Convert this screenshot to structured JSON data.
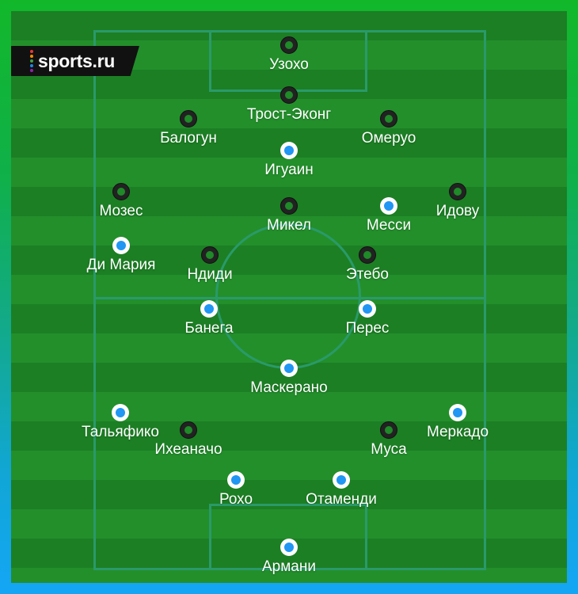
{
  "brand": {
    "logo_text": "sports.ru",
    "logo_dot_colors": [
      "#e53935",
      "#fb8c00",
      "#43a047",
      "#1e88e5",
      "#8e24aa"
    ]
  },
  "colors": {
    "nigeria": "#222222",
    "argentina": "#2196f3",
    "pitch_dark": "#1c7f24",
    "pitch_light": "#238f2b",
    "lines": "#2a9a6a"
  },
  "players": [
    {
      "name": "Узохо",
      "team": "nigeria"
    },
    {
      "name": "Трост-Эконг",
      "team": "nigeria"
    },
    {
      "name": "Балогун",
      "team": "nigeria"
    },
    {
      "name": "Омеруо",
      "team": "nigeria"
    },
    {
      "name": "Игуаин",
      "team": "argentina"
    },
    {
      "name": "Мозес",
      "team": "nigeria"
    },
    {
      "name": "Микел",
      "team": "nigeria"
    },
    {
      "name": "Месси",
      "team": "argentina"
    },
    {
      "name": "Идову",
      "team": "nigeria"
    },
    {
      "name": "Ди Мария",
      "team": "argentina"
    },
    {
      "name": "Ндиди",
      "team": "nigeria"
    },
    {
      "name": "Этебо",
      "team": "nigeria"
    },
    {
      "name": "Банега",
      "team": "argentina"
    },
    {
      "name": "Перес",
      "team": "argentina"
    },
    {
      "name": "Маскерано",
      "team": "argentina"
    },
    {
      "name": "Тальяфико",
      "team": "argentina"
    },
    {
      "name": "Ихеаначо",
      "team": "nigeria"
    },
    {
      "name": "Муса",
      "team": "nigeria"
    },
    {
      "name": "Меркадо",
      "team": "argentina"
    },
    {
      "name": "Рохо",
      "team": "argentina"
    },
    {
      "name": "Отаменди",
      "team": "argentina"
    },
    {
      "name": "Армани",
      "team": "argentina"
    }
  ]
}
